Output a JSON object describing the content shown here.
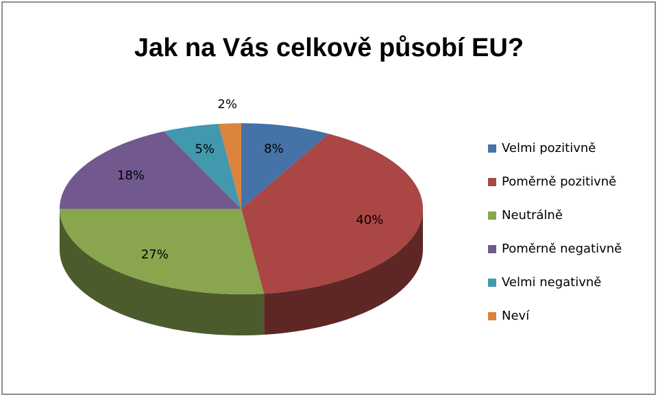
{
  "chart_data": {
    "type": "pie",
    "title": "Jak na Vás celkově působí EU?",
    "categories": [
      "Velmi pozitivně",
      "Poměrně pozitivně",
      "Neutrálně",
      "Poměrně negativně",
      "Velmi negativně",
      "Neví"
    ],
    "values": [
      8,
      40,
      27,
      18,
      5,
      2
    ],
    "value_labels": [
      "8%",
      "40%",
      "27%",
      "18%",
      "5%",
      "2%"
    ],
    "colors": [
      "#4572a7",
      "#aa4643",
      "#89a54e",
      "#71588f",
      "#4198af",
      "#db843d"
    ],
    "legend": "right"
  }
}
